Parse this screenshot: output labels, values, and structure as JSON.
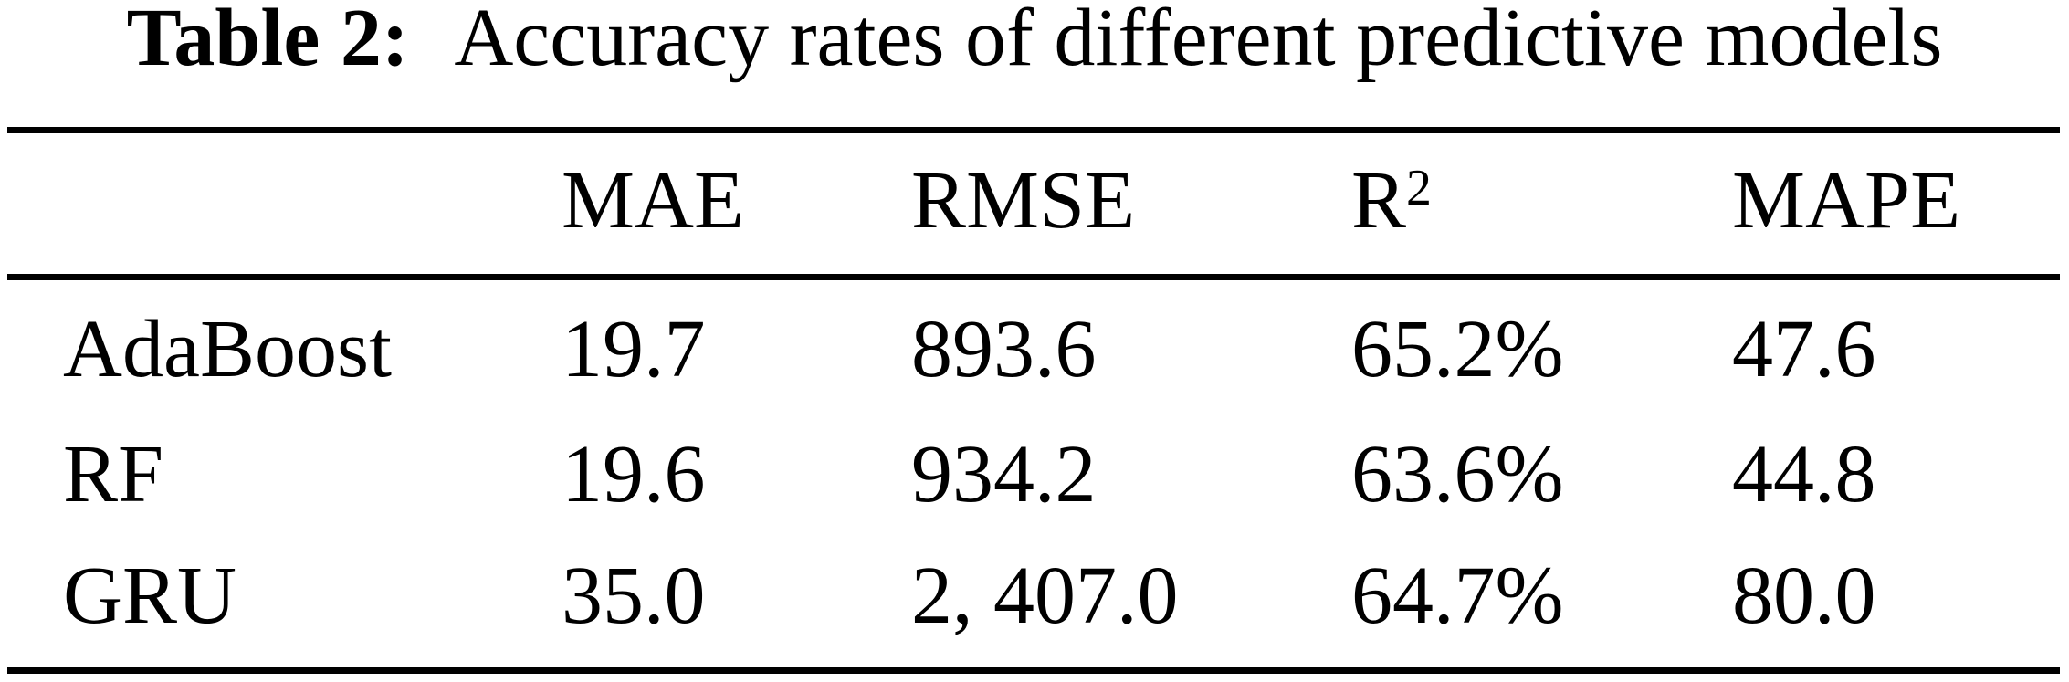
{
  "caption": {
    "label": "Table 2:",
    "text": "Accuracy rates of different predictive models"
  },
  "table": {
    "columns": [
      {
        "base": "MAE",
        "sup": ""
      },
      {
        "base": "RMSE",
        "sup": ""
      },
      {
        "base": "R",
        "sup": "2"
      },
      {
        "base": "MAPE",
        "sup": ""
      }
    ],
    "rows": [
      {
        "model": "AdaBoost",
        "mae": "19.7",
        "rmse": "893.6",
        "r2": "65.2%",
        "mape": "47.6"
      },
      {
        "model": "RF",
        "mae": "19.6",
        "rmse": "934.2",
        "r2": "63.6%",
        "mape": "44.8"
      },
      {
        "model": "GRU",
        "mae": "35.0",
        "rmse": "2, 407.0",
        "r2": "64.7%",
        "mape": "80.0"
      }
    ]
  },
  "colors": {
    "text": "#000000",
    "background": "#ffffff",
    "rule": "#000000"
  }
}
